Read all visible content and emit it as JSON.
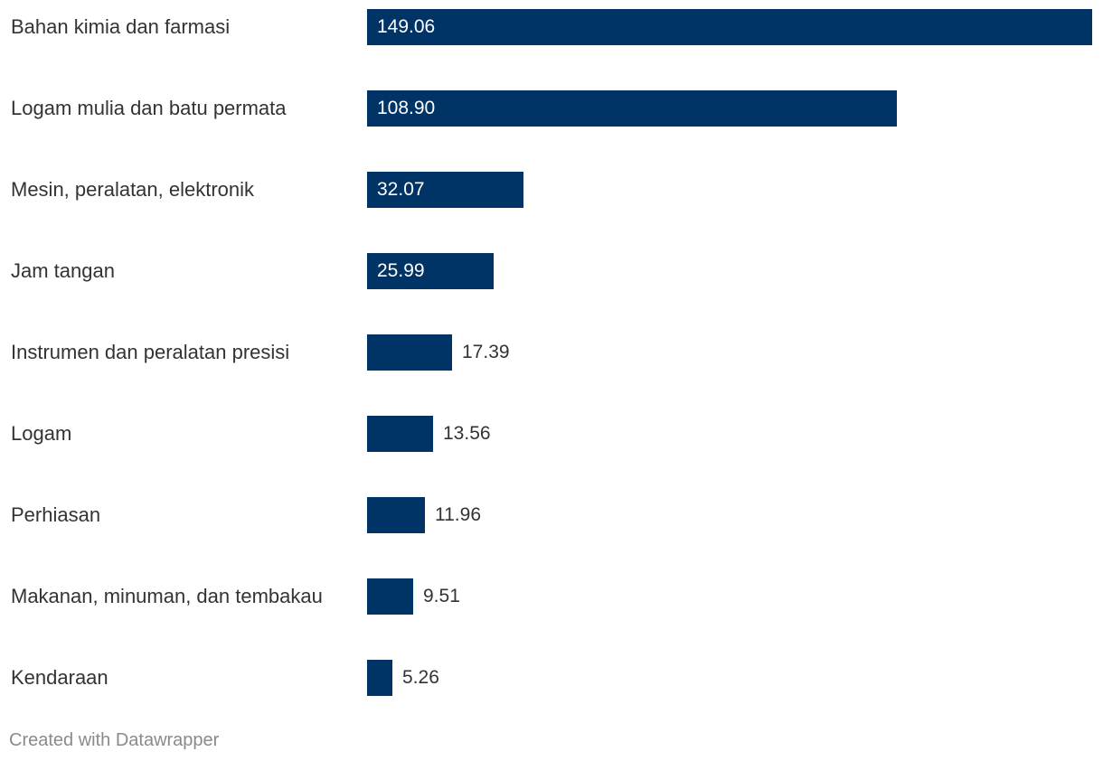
{
  "chart_data": {
    "type": "bar",
    "orientation": "horizontal",
    "categories": [
      "Bahan kimia dan farmasi",
      "Logam mulia dan batu permata",
      "Mesin, peralatan, elektronik",
      "Jam tangan",
      "Instrumen dan peralatan presisi",
      "Logam",
      "Perhiasan",
      "Makanan, minuman, dan tembakau",
      "Kendaraan"
    ],
    "values": [
      149.06,
      108.9,
      32.07,
      25.99,
      17.39,
      13.56,
      11.96,
      9.51,
      5.26
    ],
    "value_labels": [
      "149.06",
      "108.90",
      "32.07",
      "25.99",
      "17.39",
      "13.56",
      "11.96",
      "9.51",
      "5.26"
    ],
    "xlim": [
      0,
      149.06
    ],
    "bar_color": "#003366",
    "grid": false,
    "legend": "none"
  },
  "footer": {
    "credit": "Created with Datawrapper"
  }
}
